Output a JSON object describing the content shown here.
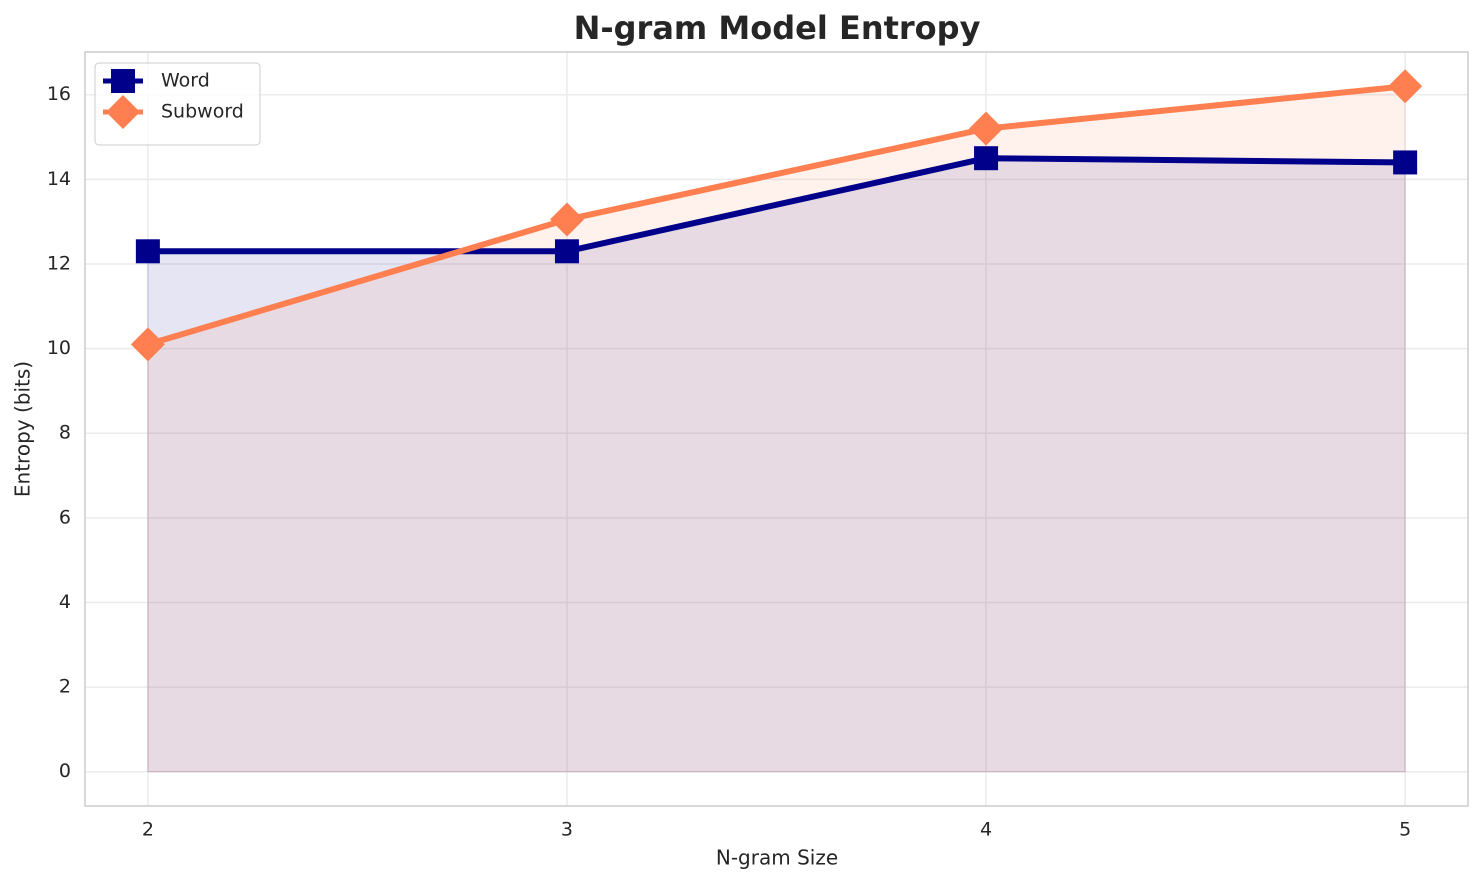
{
  "chart_data": {
    "type": "line",
    "title": "N-gram Model Entropy",
    "x_label": "N-gram Size",
    "y_label": "Entropy (bits)",
    "x": [
      2,
      3,
      4,
      5
    ],
    "series": [
      {
        "name": "Word",
        "color": "#00008b",
        "marker": "square",
        "values": [
          12.3,
          12.3,
          14.5,
          14.4
        ]
      },
      {
        "name": "Subword",
        "color": "#ff7f50",
        "marker": "diamond",
        "values": [
          10.1,
          13.05,
          15.2,
          16.2
        ]
      }
    ],
    "xlim": [
      1.85,
      5.15
    ],
    "ylim": [
      -0.81,
      17.01
    ],
    "xticks": [
      2,
      3,
      4,
      5
    ],
    "yticks": [
      0,
      2,
      4,
      6,
      8,
      10,
      12,
      14,
      16
    ],
    "grid": true,
    "fill_area": true,
    "legend": "upper left"
  }
}
